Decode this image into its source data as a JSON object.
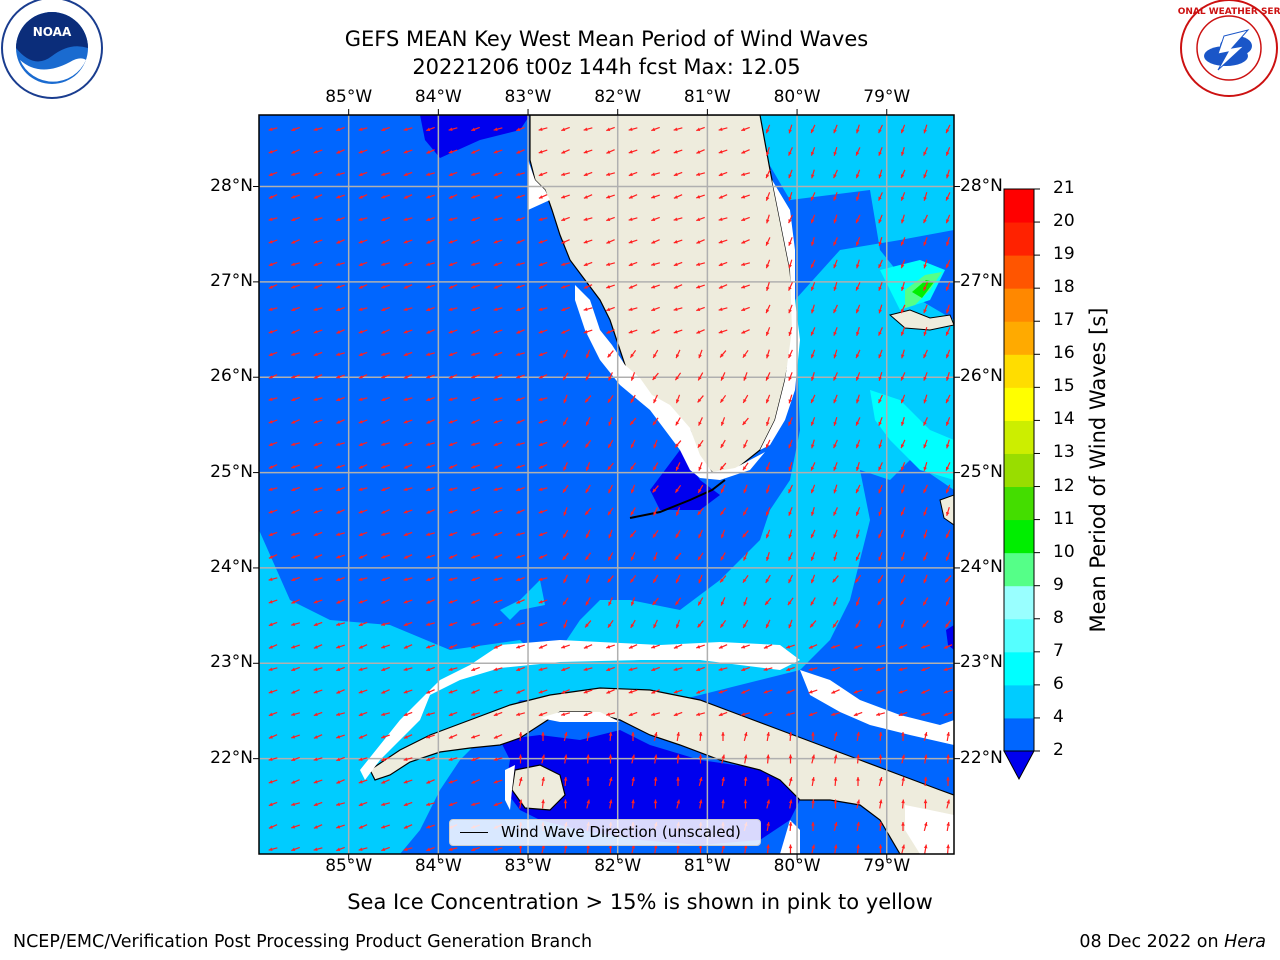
{
  "title": {
    "line1": "GEFS MEAN Key West Mean Period of Wind Waves",
    "line2": "20221206 t00z 144h fcst   Max: 12.05"
  },
  "axes": {
    "lon_ticks": [
      "85°W",
      "84°W",
      "83°W",
      "82°W",
      "81°W",
      "80°W",
      "79°W"
    ],
    "lat_ticks": [
      "28°N",
      "27°N",
      "26°N",
      "25°N",
      "24°N",
      "23°N",
      "22°N"
    ],
    "grid": true
  },
  "colorbar": {
    "label": "Mean Period of Wind Waves [s]",
    "ticks": [
      "21",
      "20",
      "19",
      "18",
      "17",
      "16",
      "15",
      "14",
      "13",
      "12",
      "11",
      "10",
      "9",
      "8",
      "7",
      "6",
      "4",
      "2"
    ],
    "levels": [
      2,
      4,
      6,
      7,
      8,
      9,
      10,
      11,
      12,
      13,
      14,
      15,
      16,
      17,
      18,
      19,
      20,
      21
    ],
    "colors": [
      "#0066ff",
      "#00ccff",
      "#00ffff",
      "#55ffff",
      "#99ffff",
      "#55ff88",
      "#00ee00",
      "#44dd00",
      "#99dd00",
      "#ccee00",
      "#ffff00",
      "#ffdd00",
      "#ffaa00",
      "#ff8800",
      "#ff5500",
      "#ff2200",
      "#ff0000"
    ],
    "extend_color": "#0000ee"
  },
  "legend": {
    "label": "Wind Wave Direction (unscaled)"
  },
  "caption": "Sea Ice Concentration > 15% is shown in pink to yellow",
  "footer": {
    "left": "NCEP/EMC/Verification Post Processing Product Generation Branch",
    "date": "08 Dec 2022 on",
    "host": "Hera"
  },
  "logos": {
    "left": "NOAA",
    "right": "NATIONAL WEATHER SERVICE"
  },
  "map_colors": {
    "land": "#eeecdd",
    "period_2_4": "#0066ff",
    "period_4_6": "#00ccff",
    "period_6_7": "#00ffff",
    "period_lt_2": "#0000ee",
    "period_9_10": "#55ff88",
    "period_10_11": "#00ee00",
    "arrow": "#ff2020",
    "grid": "#b0b0b0"
  }
}
